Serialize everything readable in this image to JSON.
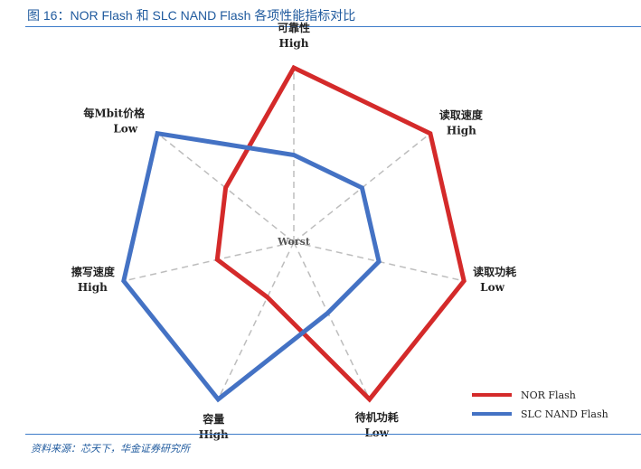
{
  "figure": {
    "title": "图 16：NOR Flash 和 SLC NAND Flash 各项性能指标对比",
    "source": "资料来源：芯天下，华金证券研究所"
  },
  "chart_data": {
    "type": "radar",
    "center_label": "Worst",
    "axes": [
      {
        "name": "可靠性",
        "best": "High"
      },
      {
        "name": "读取速度",
        "best": "High"
      },
      {
        "name": "读取功耗",
        "best": "Low"
      },
      {
        "name": "待机功耗",
        "best": "Low"
      },
      {
        "name": "容量",
        "best": "High"
      },
      {
        "name": "擦写速度",
        "best": "High"
      },
      {
        "name": "每Mbit价格",
        "best": "Low"
      }
    ],
    "range": [
      0,
      1
    ],
    "series": [
      {
        "name": "NOR Flash",
        "color": "#d42a2a",
        "values": [
          1.0,
          1.0,
          1.0,
          1.0,
          0.35,
          0.45,
          0.5
        ]
      },
      {
        "name": "SLC NAND Flash",
        "color": "#4472c4",
        "values": [
          0.5,
          0.5,
          0.5,
          0.45,
          1.0,
          1.0,
          1.0
        ]
      }
    ],
    "grid_color": "#bdbdbd",
    "legend_position": "bottom-right"
  }
}
